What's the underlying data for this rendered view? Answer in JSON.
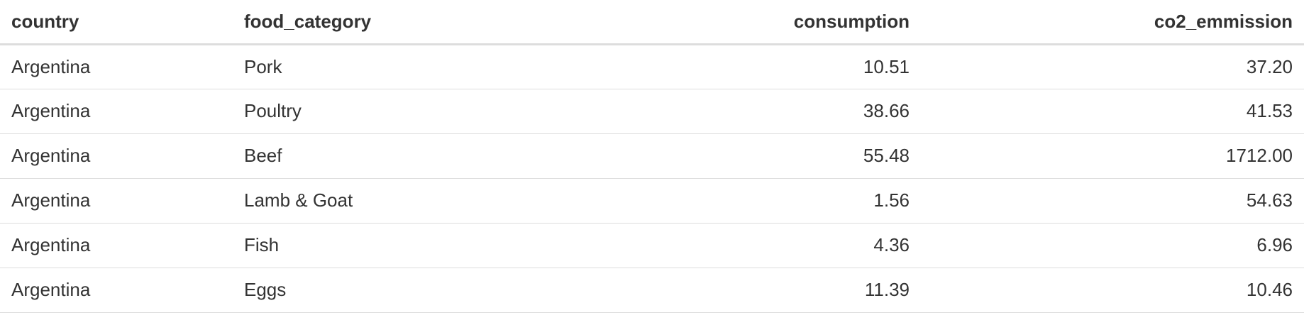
{
  "table": {
    "headers": [
      "country",
      "food_category",
      "consumption",
      "co2_emmission"
    ],
    "rows": [
      [
        "Argentina",
        "Pork",
        "10.51",
        "37.20"
      ],
      [
        "Argentina",
        "Poultry",
        "38.66",
        "41.53"
      ],
      [
        "Argentina",
        "Beef",
        "55.48",
        "1712.00"
      ],
      [
        "Argentina",
        "Lamb & Goat",
        "1.56",
        "54.63"
      ],
      [
        "Argentina",
        "Fish",
        "4.36",
        "6.96"
      ],
      [
        "Argentina",
        "Eggs",
        "11.39",
        "10.46"
      ]
    ]
  }
}
